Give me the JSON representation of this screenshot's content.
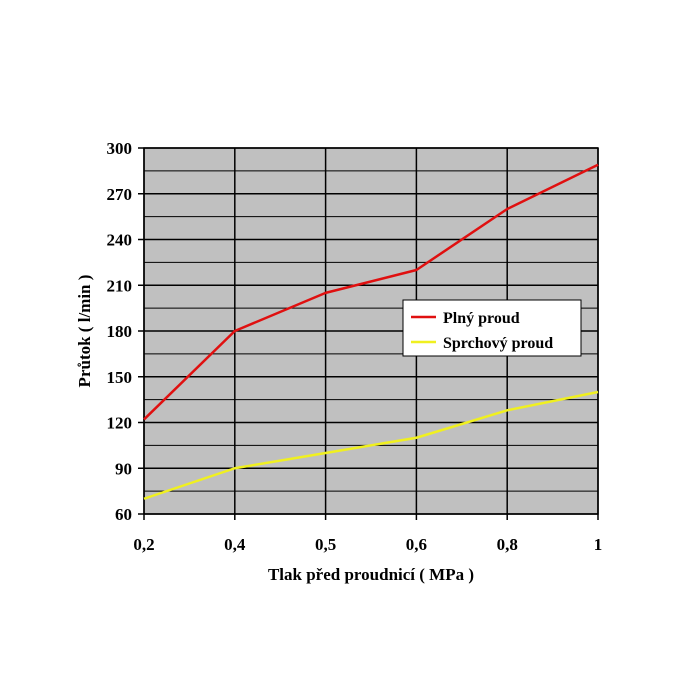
{
  "chart_data": {
    "type": "line",
    "title": "",
    "xlabel": "Tlak před proudnicí ( MPa )",
    "ylabel": "Průtok ( l/min )",
    "categories": [
      "0,2",
      "0,4",
      "0,5",
      "0,6",
      "0,8",
      "1"
    ],
    "ylim": [
      60,
      300
    ],
    "yticks": [
      60,
      90,
      120,
      150,
      180,
      210,
      240,
      270,
      300
    ],
    "y_tick_labels": [
      "60",
      "90",
      "120",
      "150",
      "180",
      "210",
      "240",
      "270",
      "300"
    ],
    "grid": true,
    "legend_position": "right-center",
    "plot_background": "#c0c0c0",
    "series": [
      {
        "name": "Plný proud",
        "color": "#e01010",
        "values": [
          122,
          180,
          205,
          220,
          260,
          289
        ]
      },
      {
        "name": "Sprchový proud",
        "color": "#f0f020",
        "values": [
          70,
          90,
          100,
          110,
          128,
          140
        ]
      }
    ]
  }
}
